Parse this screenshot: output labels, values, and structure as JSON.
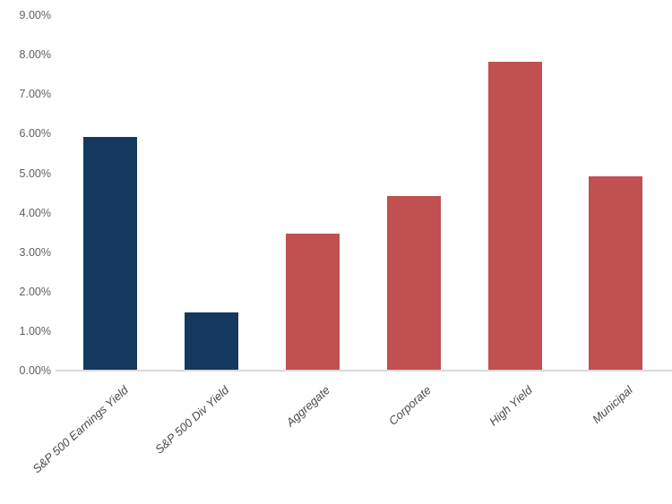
{
  "chart_data": {
    "type": "bar",
    "title": "",
    "xlabel": "",
    "ylabel": "",
    "categories": [
      "S&P 500 Earnings Yield",
      "S&P 500 Div Yield",
      "Aggregate",
      "Corporate",
      "High Yield",
      "Municipal"
    ],
    "values": [
      5.9,
      1.45,
      3.45,
      4.4,
      7.8,
      4.9
    ],
    "value_unit": "%",
    "bar_colors": [
      "#15395E",
      "#15395E",
      "#C15050",
      "#C15050",
      "#C15050",
      "#C15050"
    ],
    "color_legend": {
      "equity_color": "#15395E",
      "fixed_income_color": "#C15050"
    },
    "ylim": [
      0,
      9
    ],
    "ytick_step": 1,
    "ytick_labels": [
      "0.00%",
      "1.00%",
      "2.00%",
      "3.00%",
      "4.00%",
      "5.00%",
      "6.00%",
      "7.00%",
      "8.00%",
      "9.00%"
    ],
    "grid": false,
    "legend_position": "none",
    "axis_line_color": "#D9D9D9",
    "ytick_label_color": "#5F5F5F",
    "category_label_color": "#4A4A4A",
    "background_color": "#FFFFFF"
  }
}
